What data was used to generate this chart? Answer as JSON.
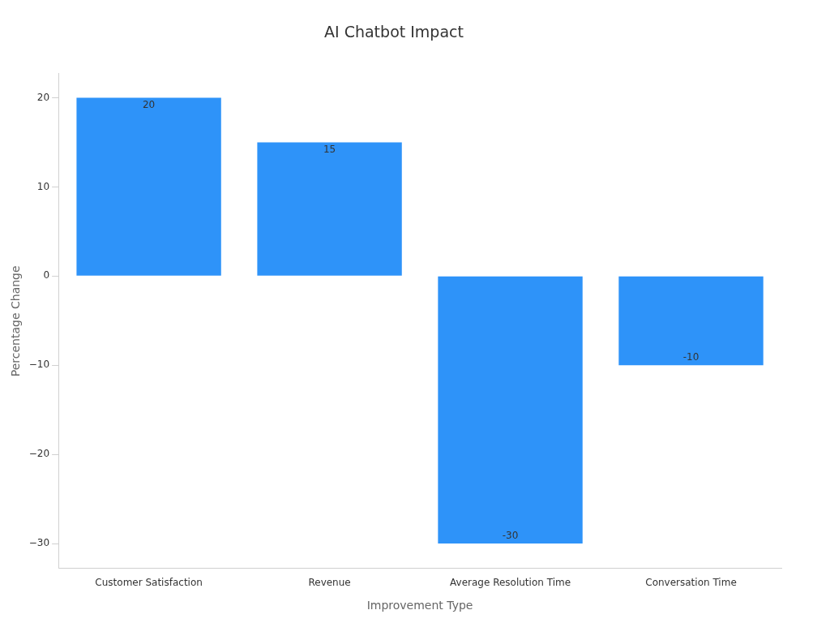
{
  "chart_data": {
    "type": "bar",
    "title": "AI Chatbot Impact",
    "xlabel": "Improvement Type",
    "ylabel": "Percentage Change",
    "categories": [
      "Customer Satisfaction",
      "Revenue",
      "Average Resolution Time",
      "Conversation Time"
    ],
    "values": [
      20,
      15,
      -30,
      -10
    ],
    "color": "#2e93f9",
    "ylim": [
      -32.8,
      22.7
    ],
    "yticks": [
      {
        "value": -30,
        "label": "−30"
      },
      {
        "value": -20,
        "label": "−20"
      },
      {
        "value": -10,
        "label": "−10"
      },
      0,
      10,
      20
    ],
    "grid": false,
    "legend": false,
    "data_labels": true
  }
}
